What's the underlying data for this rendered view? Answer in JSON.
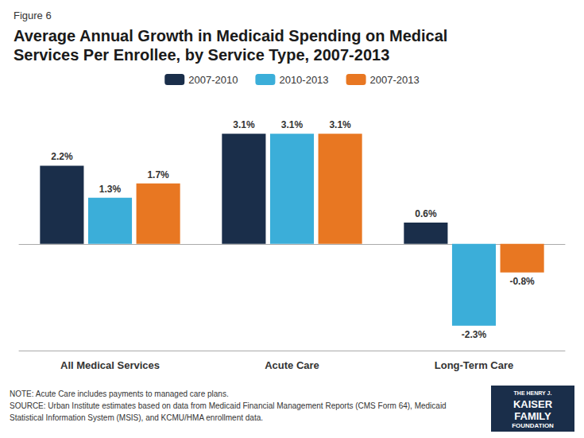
{
  "chart_data": {
    "type": "bar",
    "title": "Average Annual Growth in Medicaid Spending on Medical\nServices Per Enrollee, by Service Type, 2007-2013",
    "annotations": [
      "Figure 6",
      "NOTE: Acute Care includes payments to managed care plans.",
      "SOURCE: Urban Institute estimates based on data from Medicaid Financial Management Reports (CMS Form 64), Medicaid",
      "Statistical Information System (MSIS), and KCMU/HMA enrollment data.",
      "THE HENRY J.",
      "KAISER",
      "FAMILY",
      "FOUNDATION"
    ],
    "categories": [
      "All Medical Services",
      "Acute Care",
      "Long-Term Care"
    ],
    "series": [
      {
        "name": "2007-2010",
        "color": "#1a2e4a",
        "values": [
          2.2,
          3.1,
          0.6
        ],
        "value_labels": [
          "2.2%",
          "3.1%",
          "0.6%"
        ]
      },
      {
        "name": "2010-2013",
        "color": "#3baed9",
        "values": [
          1.3,
          3.1,
          -2.3
        ],
        "value_labels": [
          "1.3%",
          "3.1%",
          "-2.3%"
        ]
      },
      {
        "name": "2007-2013",
        "color": "#e87722",
        "values": [
          1.7,
          3.1,
          -0.8
        ],
        "value_labels": [
          "1.7%",
          "3.1%",
          "-0.8%"
        ]
      }
    ],
    "ylim": [
      -3.0,
      4.0
    ],
    "data_labels": true,
    "tick_labels": "x",
    "grid": false,
    "legend": "top"
  }
}
